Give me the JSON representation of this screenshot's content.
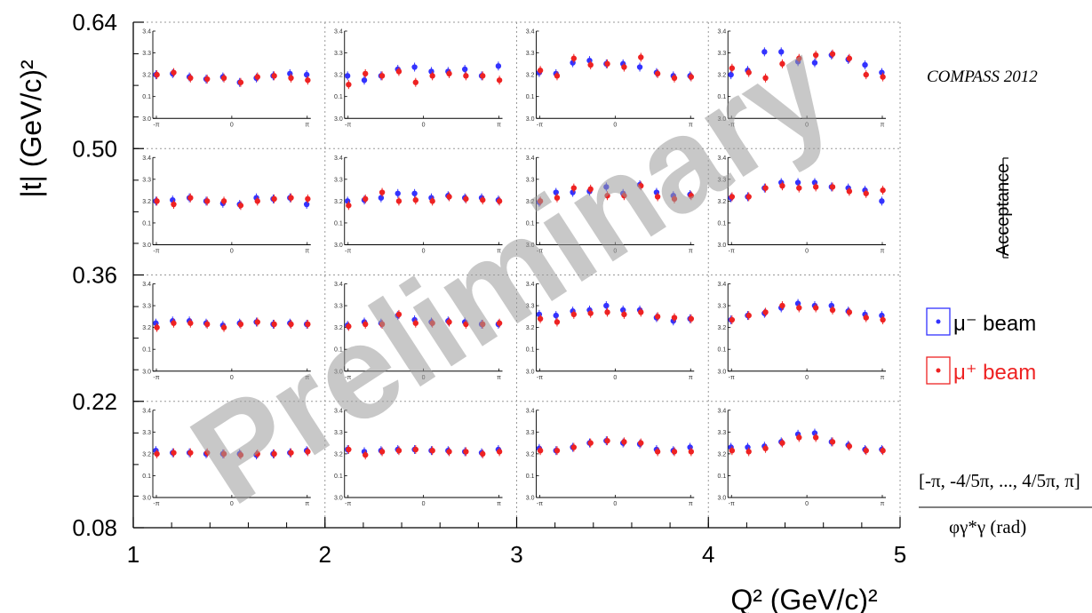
{
  "chart_data": {
    "type": "scatter",
    "title": "",
    "xlabel": "Q² (GeV/c)²",
    "ylabel": "|t| (GeV/c)²",
    "x_ticks": [
      "1",
      "2",
      "3",
      "4",
      "5"
    ],
    "y_ticks": [
      "0.08",
      "0.22",
      "0.36",
      "0.50",
      "0.64"
    ],
    "xlim": [
      1,
      5
    ],
    "ylim": [
      0.08,
      0.64
    ],
    "grid": "dotted",
    "watermark": "Preliminary",
    "annotation": "COMPASS 2012",
    "acceptance_label": "Acceptance",
    "phi_range_label": "[-π, -4/5π, ..., 4/5π, π]",
    "phi_axis_label": "φγ*γ (rad)",
    "panel_x_ticks": [
      "-π",
      "0",
      "π"
    ],
    "panel_y_ticks": [
      "3.0",
      "0.1",
      "3.2",
      "3.3",
      "3.4"
    ],
    "panel_ylim": [
      0.0,
      0.4
    ],
    "legend": [
      {
        "name": "μ⁻ beam",
        "color": "#3333ff"
      },
      {
        "name": "μ⁺ beam",
        "color": "#ee2222"
      }
    ],
    "series_colors": {
      "mu_minus": "#3333ff",
      "mu_plus": "#ee2222"
    },
    "panels": [
      {
        "q2_bin": [
          1,
          2
        ],
        "t_bin": [
          0.5,
          0.64
        ],
        "mu_minus": [
          0.2,
          0.205,
          0.19,
          0.18,
          0.19,
          0.165,
          0.185,
          0.195,
          0.205,
          0.2
        ],
        "mu_plus": [
          0.2,
          0.21,
          0.185,
          0.18,
          0.185,
          0.165,
          0.19,
          0.195,
          0.185,
          0.175
        ]
      },
      {
        "q2_bin": [
          2,
          3
        ],
        "t_bin": [
          0.5,
          0.64
        ],
        "mu_minus": [
          0.195,
          0.175,
          0.195,
          0.225,
          0.235,
          0.215,
          0.215,
          0.225,
          0.195,
          0.24
        ],
        "mu_plus": [
          0.155,
          0.205,
          0.195,
          0.215,
          0.165,
          0.195,
          0.205,
          0.195,
          0.195,
          0.175
        ]
      },
      {
        "q2_bin": [
          3,
          4
        ],
        "t_bin": [
          0.5,
          0.64
        ],
        "mu_minus": [
          0.21,
          0.205,
          0.255,
          0.265,
          0.25,
          0.25,
          0.235,
          0.21,
          0.195,
          0.195
        ],
        "mu_plus": [
          0.22,
          0.195,
          0.275,
          0.245,
          0.25,
          0.235,
          0.28,
          0.205,
          0.185,
          0.19
        ]
      },
      {
        "q2_bin": [
          4,
          5
        ],
        "t_bin": [
          0.5,
          0.64
        ],
        "mu_minus": [
          0.2,
          0.22,
          0.305,
          0.305,
          0.26,
          0.255,
          0.29,
          0.27,
          0.245,
          0.21
        ],
        "mu_plus": [
          0.23,
          0.21,
          0.185,
          0.25,
          0.275,
          0.29,
          0.295,
          0.275,
          0.2,
          0.19
        ]
      },
      {
        "q2_bin": [
          1,
          2
        ],
        "t_bin": [
          0.36,
          0.5
        ],
        "mu_minus": [
          0.2,
          0.205,
          0.215,
          0.2,
          0.19,
          0.185,
          0.215,
          0.21,
          0.215,
          0.185
        ],
        "mu_plus": [
          0.2,
          0.185,
          0.215,
          0.2,
          0.2,
          0.18,
          0.2,
          0.21,
          0.215,
          0.21
        ]
      },
      {
        "q2_bin": [
          2,
          3
        ],
        "t_bin": [
          0.36,
          0.5
        ],
        "mu_minus": [
          0.2,
          0.205,
          0.215,
          0.235,
          0.235,
          0.215,
          0.225,
          0.215,
          0.215,
          0.205
        ],
        "mu_plus": [
          0.18,
          0.21,
          0.24,
          0.2,
          0.205,
          0.2,
          0.22,
          0.21,
          0.205,
          0.2
        ]
      },
      {
        "q2_bin": [
          3,
          4
        ],
        "t_bin": [
          0.36,
          0.5
        ],
        "mu_minus": [
          0.195,
          0.24,
          0.24,
          0.245,
          0.265,
          0.235,
          0.275,
          0.24,
          0.225,
          0.23
        ],
        "mu_plus": [
          0.2,
          0.215,
          0.26,
          0.255,
          0.225,
          0.225,
          0.27,
          0.22,
          0.21,
          0.225
        ]
      },
      {
        "q2_bin": [
          4,
          5
        ],
        "t_bin": [
          0.36,
          0.5
        ],
        "mu_minus": [
          0.215,
          0.22,
          0.26,
          0.285,
          0.285,
          0.285,
          0.265,
          0.26,
          0.25,
          0.2
        ],
        "mu_plus": [
          0.22,
          0.22,
          0.26,
          0.27,
          0.26,
          0.265,
          0.265,
          0.245,
          0.235,
          0.25
        ]
      },
      {
        "q2_bin": [
          1,
          2
        ],
        "t_bin": [
          0.22,
          0.36
        ],
        "mu_minus": [
          0.22,
          0.23,
          0.23,
          0.22,
          0.21,
          0.22,
          0.225,
          0.215,
          0.22,
          0.215
        ],
        "mu_plus": [
          0.2,
          0.22,
          0.22,
          0.215,
          0.2,
          0.215,
          0.225,
          0.215,
          0.215,
          0.215
        ]
      },
      {
        "q2_bin": [
          2,
          3
        ],
        "t_bin": [
          0.22,
          0.36
        ],
        "mu_minus": [
          0.21,
          0.225,
          0.22,
          0.255,
          0.235,
          0.225,
          0.23,
          0.225,
          0.215,
          0.215
        ],
        "mu_plus": [
          0.205,
          0.215,
          0.215,
          0.26,
          0.22,
          0.22,
          0.225,
          0.215,
          0.215,
          0.22
        ]
      },
      {
        "q2_bin": [
          3,
          4
        ],
        "t_bin": [
          0.22,
          0.36
        ],
        "mu_minus": [
          0.26,
          0.255,
          0.275,
          0.28,
          0.3,
          0.28,
          0.28,
          0.245,
          0.23,
          0.24
        ],
        "mu_plus": [
          0.24,
          0.225,
          0.26,
          0.265,
          0.27,
          0.26,
          0.27,
          0.25,
          0.245,
          0.24
        ]
      },
      {
        "q2_bin": [
          4,
          5
        ],
        "t_bin": [
          0.22,
          0.36
        ],
        "mu_minus": [
          0.235,
          0.255,
          0.265,
          0.29,
          0.31,
          0.3,
          0.3,
          0.275,
          0.26,
          0.255
        ],
        "mu_plus": [
          0.235,
          0.255,
          0.27,
          0.3,
          0.29,
          0.29,
          0.28,
          0.27,
          0.245,
          0.235
        ]
      },
      {
        "q2_bin": [
          1,
          2
        ],
        "t_bin": [
          0.08,
          0.22
        ],
        "mu_minus": [
          0.215,
          0.205,
          0.205,
          0.2,
          0.2,
          0.2,
          0.195,
          0.2,
          0.205,
          0.215
        ],
        "mu_plus": [
          0.2,
          0.205,
          0.205,
          0.205,
          0.2,
          0.195,
          0.2,
          0.2,
          0.205,
          0.21
        ]
      },
      {
        "q2_bin": [
          2,
          3
        ],
        "t_bin": [
          0.08,
          0.22
        ],
        "mu_minus": [
          0.22,
          0.21,
          0.215,
          0.22,
          0.22,
          0.215,
          0.215,
          0.21,
          0.205,
          0.22
        ],
        "mu_plus": [
          0.22,
          0.195,
          0.21,
          0.215,
          0.22,
          0.215,
          0.21,
          0.21,
          0.2,
          0.21
        ]
      },
      {
        "q2_bin": [
          3,
          4
        ],
        "t_bin": [
          0.08,
          0.22
        ],
        "mu_minus": [
          0.225,
          0.215,
          0.23,
          0.25,
          0.26,
          0.25,
          0.245,
          0.22,
          0.215,
          0.23
        ],
        "mu_plus": [
          0.215,
          0.215,
          0.23,
          0.25,
          0.26,
          0.255,
          0.25,
          0.21,
          0.21,
          0.21
        ]
      },
      {
        "q2_bin": [
          4,
          5
        ],
        "t_bin": [
          0.08,
          0.22
        ],
        "mu_minus": [
          0.23,
          0.23,
          0.235,
          0.255,
          0.29,
          0.295,
          0.255,
          0.24,
          0.22,
          0.22
        ],
        "mu_plus": [
          0.215,
          0.21,
          0.225,
          0.25,
          0.275,
          0.275,
          0.255,
          0.235,
          0.215,
          0.215
        ]
      }
    ]
  }
}
